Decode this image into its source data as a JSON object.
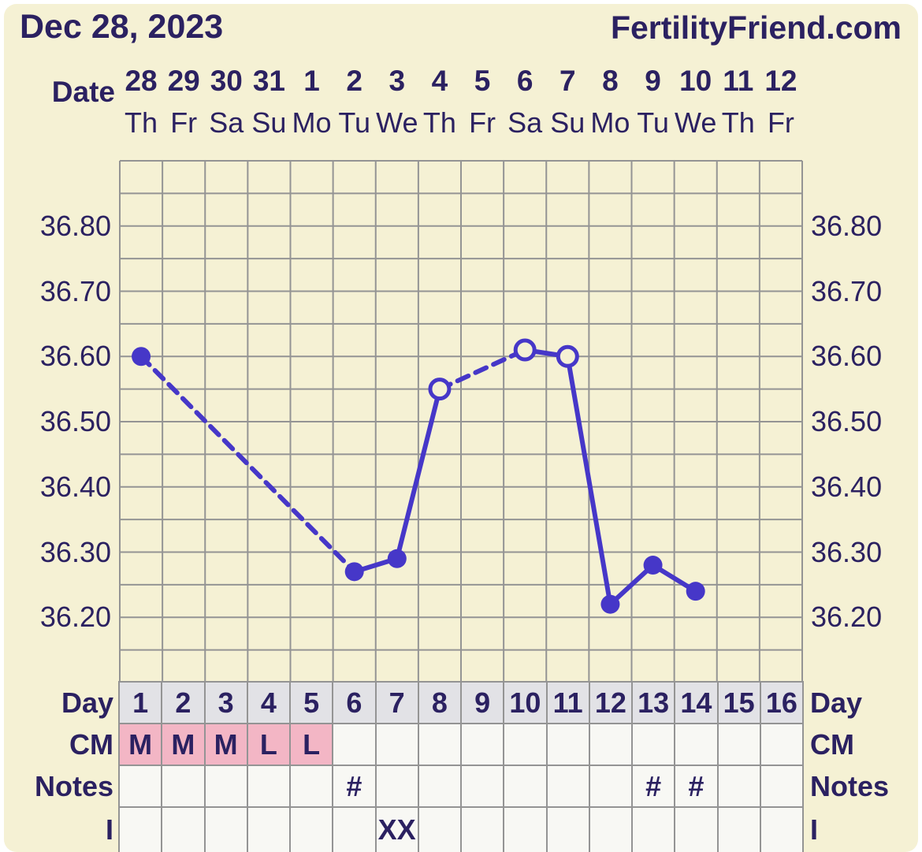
{
  "header": {
    "date_title": "Dec 28, 2023",
    "brand": "FertilityFriend.com"
  },
  "labels": {
    "date_row": "Date",
    "day_row": "Day",
    "cm_row": "CM",
    "notes_row": "Notes",
    "intercourse_row": "I"
  },
  "colors": {
    "background_cream": "#f5f1d4",
    "text_navy": "#2b2161",
    "line_purple": "#4637c8",
    "grid_gray": "#949494",
    "cell_white": "#f8f8f4",
    "day_row_gray": "#e2e2e6",
    "cm_pink": "#f3b6c5",
    "page_border_white": "#ffffff"
  },
  "chart_data": {
    "type": "line",
    "title": "Basal body temperature chart (BBT)",
    "temp_unit": "C",
    "ylim": [
      36.1,
      36.9
    ],
    "ytick_step": 0.05,
    "grid": true,
    "yticks": [
      {
        "value": 36.8,
        "label": "36.80"
      },
      {
        "value": 36.7,
        "label": "36.70"
      },
      {
        "value": 36.6,
        "label": "36.60"
      },
      {
        "value": 36.5,
        "label": "36.50"
      },
      {
        "value": 36.4,
        "label": "36.40"
      },
      {
        "value": 36.3,
        "label": "36.30"
      },
      {
        "value": 36.2,
        "label": "36.20"
      }
    ],
    "line_style_note": "solid between adjacent charted days, dashed across missing days; open markers = estimated temps",
    "days": [
      {
        "day": "1",
        "date": "28",
        "weekday": "Th",
        "temp": 36.6,
        "marker": "filled",
        "cm": "M",
        "note": "",
        "i": ""
      },
      {
        "day": "2",
        "date": "29",
        "weekday": "Fr",
        "temp": null,
        "marker": "",
        "cm": "M",
        "note": "",
        "i": ""
      },
      {
        "day": "3",
        "date": "30",
        "weekday": "Sa",
        "temp": null,
        "marker": "",
        "cm": "M",
        "note": "",
        "i": ""
      },
      {
        "day": "4",
        "date": "31",
        "weekday": "Su",
        "temp": null,
        "marker": "",
        "cm": "L",
        "note": "",
        "i": ""
      },
      {
        "day": "5",
        "date": "1",
        "weekday": "Mo",
        "temp": null,
        "marker": "",
        "cm": "L",
        "note": "",
        "i": ""
      },
      {
        "day": "6",
        "date": "2",
        "weekday": "Tu",
        "temp": 36.27,
        "marker": "filled",
        "cm": "",
        "note": "#",
        "i": ""
      },
      {
        "day": "7",
        "date": "3",
        "weekday": "We",
        "temp": 36.29,
        "marker": "filled",
        "cm": "",
        "note": "",
        "i": "XX"
      },
      {
        "day": "8",
        "date": "4",
        "weekday": "Th",
        "temp": 36.55,
        "marker": "open",
        "cm": "",
        "note": "",
        "i": ""
      },
      {
        "day": "9",
        "date": "5",
        "weekday": "Fr",
        "temp": null,
        "marker": "",
        "cm": "",
        "note": "",
        "i": ""
      },
      {
        "day": "10",
        "date": "6",
        "weekday": "Sa",
        "temp": 36.61,
        "marker": "open",
        "cm": "",
        "note": "",
        "i": ""
      },
      {
        "day": "11",
        "date": "7",
        "weekday": "Su",
        "temp": 36.6,
        "marker": "open",
        "cm": "",
        "note": "",
        "i": ""
      },
      {
        "day": "12",
        "date": "8",
        "weekday": "Mo",
        "temp": 36.22,
        "marker": "filled",
        "cm": "",
        "note": "",
        "i": ""
      },
      {
        "day": "13",
        "date": "9",
        "weekday": "Tu",
        "temp": 36.28,
        "marker": "filled",
        "cm": "",
        "note": "#",
        "i": ""
      },
      {
        "day": "14",
        "date": "10",
        "weekday": "We",
        "temp": 36.24,
        "marker": "filled",
        "cm": "",
        "note": "#",
        "i": ""
      },
      {
        "day": "15",
        "date": "11",
        "weekday": "Th",
        "temp": null,
        "marker": "",
        "cm": "",
        "note": "",
        "i": ""
      },
      {
        "day": "16",
        "date": "12",
        "weekday": "Fr",
        "temp": null,
        "marker": "",
        "cm": "",
        "note": "",
        "i": ""
      }
    ]
  }
}
